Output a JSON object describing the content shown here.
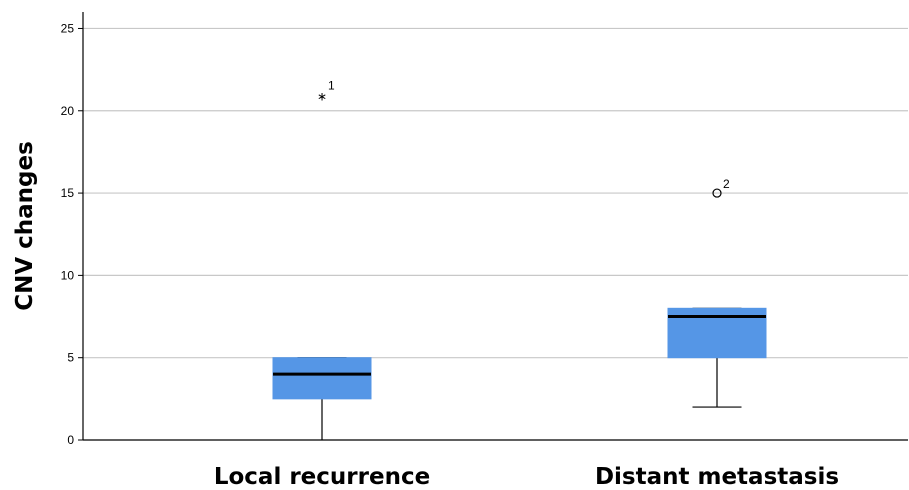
{
  "chart_data": {
    "type": "box",
    "ylabel": "CNV changes",
    "xlabel": "",
    "ylim": [
      0,
      26
    ],
    "yticks": [
      0,
      5,
      10,
      15,
      20,
      25
    ],
    "grid": true,
    "colors": {
      "box": "#5596e6",
      "median": "#000000",
      "grid": "#c8c8c8",
      "axis": "#000000"
    },
    "categories": [
      "Local recurrence",
      "Distant metastasis"
    ],
    "boxes": [
      {
        "category": "Local recurrence",
        "min": 0,
        "q1": 2.5,
        "median": 4,
        "q3": 5,
        "max": 5,
        "outliers": [
          {
            "value": 21,
            "label": "1",
            "marker": "star"
          }
        ]
      },
      {
        "category": "Distant metastasis",
        "min": 2,
        "q1": 5,
        "median": 7.5,
        "q3": 8,
        "max": 8,
        "outliers": [
          {
            "value": 15,
            "label": "2",
            "marker": "circle"
          }
        ]
      }
    ]
  }
}
